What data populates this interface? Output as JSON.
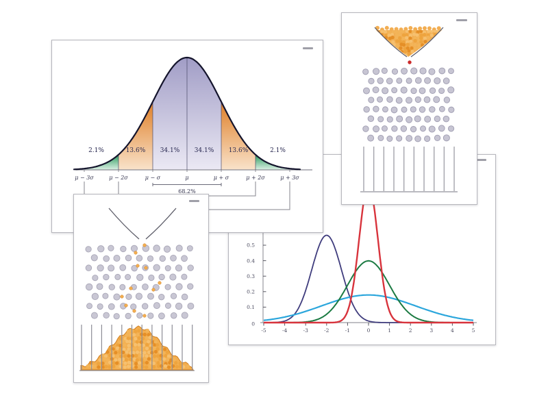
{
  "page": {
    "background": "#ffffff"
  },
  "figures": {
    "bell_card": {
      "name": "normal distribution with sigma bands"
    },
    "galton_top": {
      "name": "Galton board, funnel full of balls, ball dropping",
      "funnel_state": "full",
      "ball_color": "#f2ae53",
      "drop_ball_color": "#cc2a2a",
      "peg_color": "#c7c5d3",
      "peg_stroke": "#9e9cb0",
      "peg_rows": 8,
      "bin_walls": 10,
      "wall_color": "#a3a3ab",
      "bins_content": "empty"
    },
    "galton_bottom": {
      "name": "Galton board, empty funnel, bell-shaped pile in bins",
      "funnel_state": "empty",
      "ball_color": "#f3ae4f",
      "pile_outline": "#cf7e20",
      "peg_color": "#c9c7d4",
      "peg_stroke": "#a8a6b6",
      "peg_rows": 8,
      "bin_walls": 12,
      "wall_color": "#8d8d95",
      "bins_content": "bell-shaped pile of balls",
      "falling_balls": [
        [
          103,
          74
        ],
        [
          90,
          85
        ],
        [
          93,
          104
        ],
        [
          105,
          107
        ],
        [
          125,
          129
        ],
        [
          116,
          139
        ],
        [
          83,
          137
        ],
        [
          70,
          149
        ],
        [
          76,
          162
        ],
        [
          88,
          170
        ],
        [
          103,
          177
        ]
      ]
    }
  },
  "chart_data": [
    {
      "id": "sigma-band-bell",
      "type": "area",
      "title": "",
      "bands": [
        {
          "range": "μ−3σ..μ−2σ",
          "percent": 2.1,
          "label": "2.1%",
          "color_key": "green"
        },
        {
          "range": "μ−2σ..μ−σ",
          "percent": 13.6,
          "label": "13.6%",
          "color_key": "orange"
        },
        {
          "range": "μ−σ..μ",
          "percent": 34.1,
          "label": "34.1%",
          "color_key": "purple"
        },
        {
          "range": "μ..μ+σ",
          "percent": 34.1,
          "label": "34.1%",
          "color_key": "purple"
        },
        {
          "range": "μ+σ..μ+2σ",
          "percent": 13.6,
          "label": "13.6%",
          "color_key": "orange"
        },
        {
          "range": "μ+2σ..μ+3σ",
          "percent": 2.1,
          "label": "2.1%",
          "color_key": "green"
        }
      ],
      "axis_labels": [
        "μ − 3σ",
        "μ − 2σ",
        "μ − σ",
        "μ",
        "μ + σ",
        "μ + 2σ",
        "μ + 3σ"
      ],
      "bracket_label": "68.2%",
      "colors": {
        "green_top": "#2c9a5e",
        "green_bottom": "#dcf0e4",
        "orange_top": "#df7f28",
        "orange_bottom": "#f9e3ca",
        "purple_top": "#a19dc6",
        "purple_bottom": "#ebe9f4",
        "outline": "#14142c",
        "axis": "#8b8b94"
      },
      "grid": false,
      "legend": "none"
    },
    {
      "id": "normal-pdf-curves",
      "type": "line",
      "title": "",
      "xlabel": "",
      "ylabel": "",
      "xlim": [
        -5,
        5
      ],
      "ylim": [
        0,
        0.59
      ],
      "xticks": [
        -5,
        -4,
        -3,
        -2,
        -1,
        0,
        1,
        2,
        3,
        4,
        5
      ],
      "xtick_labels": [
        "-5",
        "-4",
        "-3",
        "-2",
        "-1",
        "0",
        "1",
        "2",
        "3",
        "4",
        "5"
      ],
      "yticks": [
        0,
        0.1,
        0.2,
        0.3,
        0.4,
        0.5
      ],
      "ytick_labels": [
        "0",
        "0.1",
        "0.2",
        "0.3",
        "0.4",
        "0.5"
      ],
      "grid": false,
      "legend": "none",
      "axis_color": "#9a9aa0",
      "series": [
        {
          "mu": -2,
          "variance": 0.5,
          "peak": 0.564,
          "color": "#3f3c7d",
          "width": 1.8
        },
        {
          "mu": 0,
          "variance": 5.0,
          "peak": 0.178,
          "color": "#2ba6dc",
          "width": 2.2
        },
        {
          "mu": 0,
          "variance": 1.0,
          "peak": 0.399,
          "color": "#1b7a42",
          "width": 2.0
        },
        {
          "mu": 0,
          "variance": 0.2,
          "peak": 0.892,
          "color": "#d8333c",
          "width": 2.4
        }
      ]
    }
  ]
}
